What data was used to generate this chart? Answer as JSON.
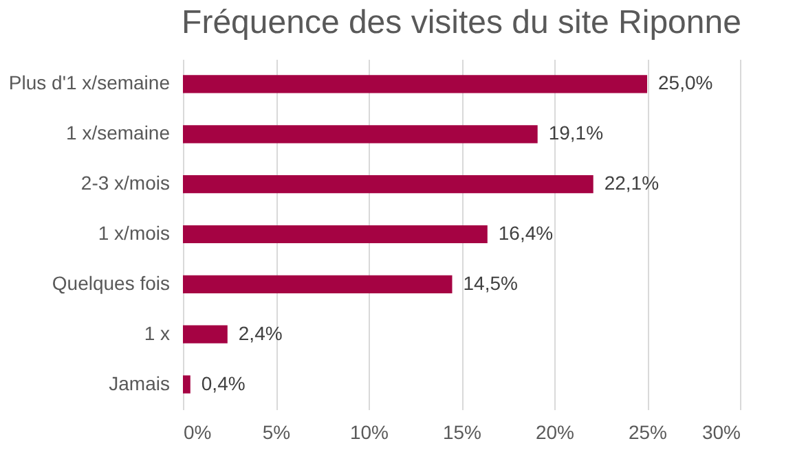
{
  "chart_data": {
    "type": "bar",
    "orientation": "horizontal",
    "title": "Fréquence des visites du site Riponne",
    "categories": [
      "Plus d'1 x/semaine",
      "1 x/semaine",
      "2-3 x/mois",
      "1 x/mois",
      "Quelques fois ",
      "1 x ",
      "Jamais"
    ],
    "values": [
      25.0,
      19.1,
      22.1,
      16.4,
      14.5,
      2.4,
      0.4
    ],
    "value_labels": [
      "25,0%",
      "19,1%",
      "22,1%",
      "16,4%",
      "14,5%",
      "2,4%",
      "0,4%"
    ],
    "color": "#a50343",
    "xlim": [
      0,
      30
    ],
    "xticks": [
      {
        "value": 0,
        "label": "0%"
      },
      {
        "value": 5,
        "label": "5%"
      },
      {
        "value": 10,
        "label": "10%"
      },
      {
        "value": 15,
        "label": "15%"
      },
      {
        "value": 20,
        "label": "20%"
      },
      {
        "value": 25,
        "label": "25%"
      },
      {
        "value": 30,
        "label": "30%"
      }
    ],
    "grid": "x"
  }
}
